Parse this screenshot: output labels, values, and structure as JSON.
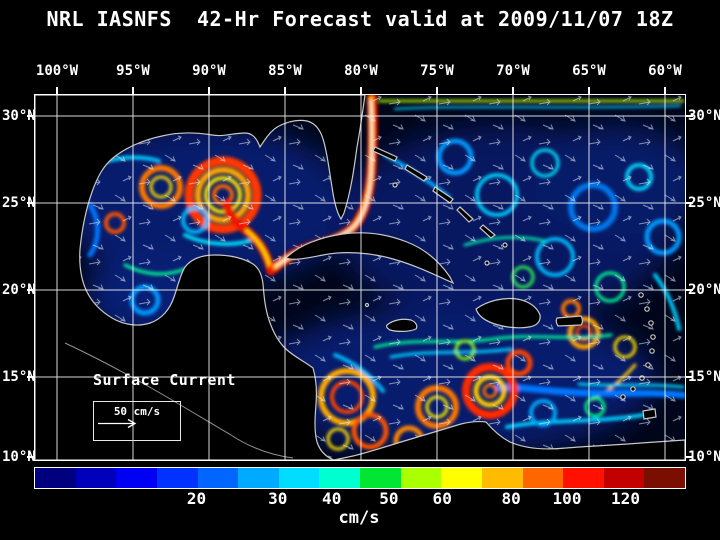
{
  "title": "NRL IASNFS  42-Hr Forecast valid at 2009/11/07 18Z",
  "axes": {
    "lon": [
      "100°W",
      "95°W",
      "90°W",
      "85°W",
      "80°W",
      "75°W",
      "70°W",
      "65°W",
      "60°W"
    ],
    "lat": [
      "30°N",
      "25°N",
      "20°N",
      "15°N",
      "10°N"
    ]
  },
  "map": {
    "field_label": "Surface Current",
    "scale_label": "50 cm/s"
  },
  "colorbar": {
    "units": "cm/s",
    "ticks": [
      "20",
      "30",
      "40",
      "50",
      "60",
      "80",
      "100",
      "120"
    ],
    "colors": [
      "#00007f",
      "#0000bb",
      "#0000f3",
      "#0033ff",
      "#0066ff",
      "#00aaff",
      "#00ddff",
      "#00ffd0",
      "#00e633",
      "#aaff00",
      "#ffff00",
      "#ffbb00",
      "#ff6600",
      "#ff1100",
      "#c30000",
      "#7a0f00"
    ]
  },
  "chart_data": {
    "type": "heatmap",
    "title": "NRL IASNFS  42-Hr Forecast valid at 2009/11/07 18Z",
    "model": "NRL IASNFS",
    "forecast": "42-Hr Forecast",
    "valid_time": "2009/11/07 18Z",
    "variable": "Surface Current",
    "units": "cm/s",
    "x_ticks": [
      "100°W",
      "95°W",
      "90°W",
      "85°W",
      "80°W",
      "75°W",
      "70°W",
      "65°W",
      "60°W"
    ],
    "y_ticks": [
      "30°N",
      "25°N",
      "20°N",
      "15°N",
      "10°N"
    ],
    "grid": true,
    "grid_interval_deg": 5,
    "legend_position": "bottom",
    "colorbar_ticks": [
      20,
      30,
      40,
      50,
      60,
      80,
      100,
      120
    ],
    "colorbar_colors": [
      "#00007f",
      "#0000bb",
      "#0000f3",
      "#0033ff",
      "#0066ff",
      "#00aaff",
      "#00ddff",
      "#00ffd0",
      "#00e633",
      "#aaff00",
      "#ffff00",
      "#ffbb00",
      "#ff6600",
      "#ff1100",
      "#c30000",
      "#7a0f00"
    ],
    "reference_vector": {
      "label": "50 cm/s",
      "value": 50,
      "units": "cm/s"
    }
  }
}
